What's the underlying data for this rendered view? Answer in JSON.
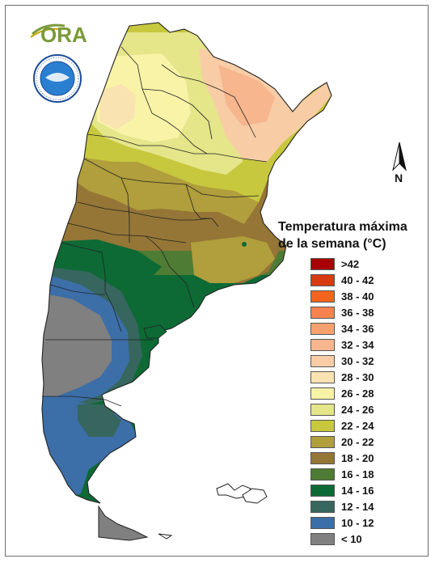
{
  "map": {
    "logo_text": "ORA",
    "seal_text": "SERVICIO METEOROLOGICO NACIONAL · ARGENTINA",
    "north_label": "N",
    "legend": {
      "title_line1": "Temperatura máxima",
      "title_line2": "de la semana (°C)",
      "items": [
        {
          "label": ">42",
          "color": "#a80000"
        },
        {
          "label": "40 - 42",
          "color": "#d83a12"
        },
        {
          "label": "38 - 40",
          "color": "#f2641e"
        },
        {
          "label": "36 - 38",
          "color": "#f6834f"
        },
        {
          "label": "34 - 36",
          "color": "#f7a170"
        },
        {
          "label": "32 - 34",
          "color": "#f7b68e"
        },
        {
          "label": "30 - 32",
          "color": "#f8cda6"
        },
        {
          "label": "28 - 30",
          "color": "#f9e3b1"
        },
        {
          "label": "26 - 28",
          "color": "#f8f3a7"
        },
        {
          "label": "24 - 26",
          "color": "#e5e58a"
        },
        {
          "label": "22 - 24",
          "color": "#c8c83e"
        },
        {
          "label": "20 - 22",
          "color": "#b19e3c"
        },
        {
          "label": "18 - 20",
          "color": "#957636"
        },
        {
          "label": "16 - 18",
          "color": "#4e7c34"
        },
        {
          "label": "14 - 16",
          "color": "#0d6a35"
        },
        {
          "label": "12 - 14",
          "color": "#36665e"
        },
        {
          "label": "10 - 12",
          "color": "#3c6ea8"
        },
        {
          "label": "< 10",
          "color": "#808080"
        }
      ]
    }
  }
}
